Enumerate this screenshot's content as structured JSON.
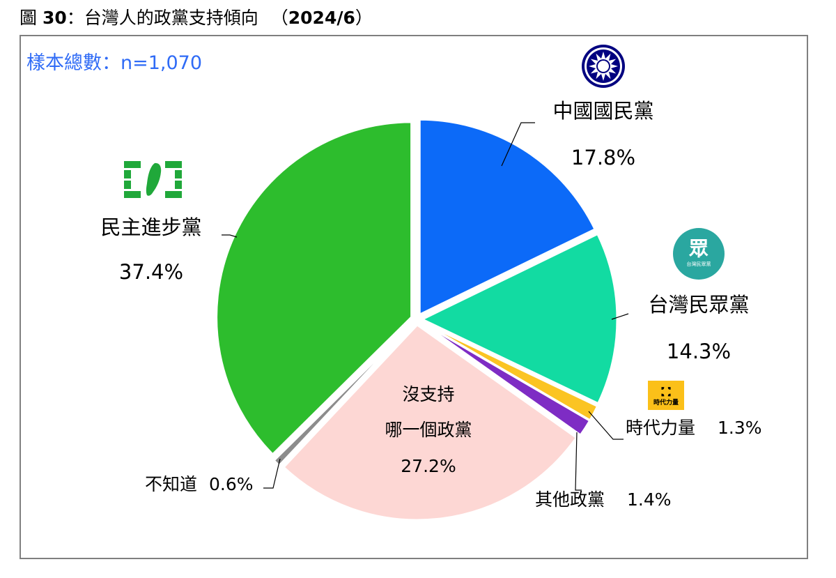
{
  "figure_title": {
    "prefix": "圖",
    "number": "30",
    "colon": "：",
    "text": "台灣人的政黨支持傾向",
    "date_open": "（",
    "date": "2024/6",
    "date_close": "）"
  },
  "sample_note": "樣本總數：n=1,070",
  "chart_data": {
    "type": "pie",
    "slices": [
      {
        "name": "中國國民黨",
        "value": 17.8,
        "display": "17.8%",
        "color": "#0c6af8"
      },
      {
        "name": "台灣民眾黨",
        "value": 14.3,
        "display": "14.3%",
        "color": "#12dba2"
      },
      {
        "name": "時代力量",
        "value": 1.3,
        "display": "1.3%",
        "color": "#fbc423"
      },
      {
        "name": "其他政黨",
        "value": 1.4,
        "display": "1.4%",
        "color": "#7e2cc4"
      },
      {
        "name": "沒支持哪一個政黨",
        "name_lines": [
          "沒支持",
          "哪一個政黨"
        ],
        "value": 27.2,
        "display": "27.2%",
        "color": "#fdd7d4"
      },
      {
        "name": "不知道",
        "value": 0.6,
        "display": "0.6%",
        "color": "#8c8c8c"
      },
      {
        "name": "民主進步黨",
        "value": 37.4,
        "display": "37.4%",
        "color": "#2dbd2d"
      }
    ]
  },
  "logos": {
    "kmt": "kmt-sun-emblem-icon",
    "tpp": "tpp-logo-icon",
    "tpp_char": "眾",
    "tpp_sub": "台灣民眾黨",
    "npp": "npp-logo-icon",
    "npp_text": "時代力量",
    "dpp": "dpp-flag-icon"
  }
}
